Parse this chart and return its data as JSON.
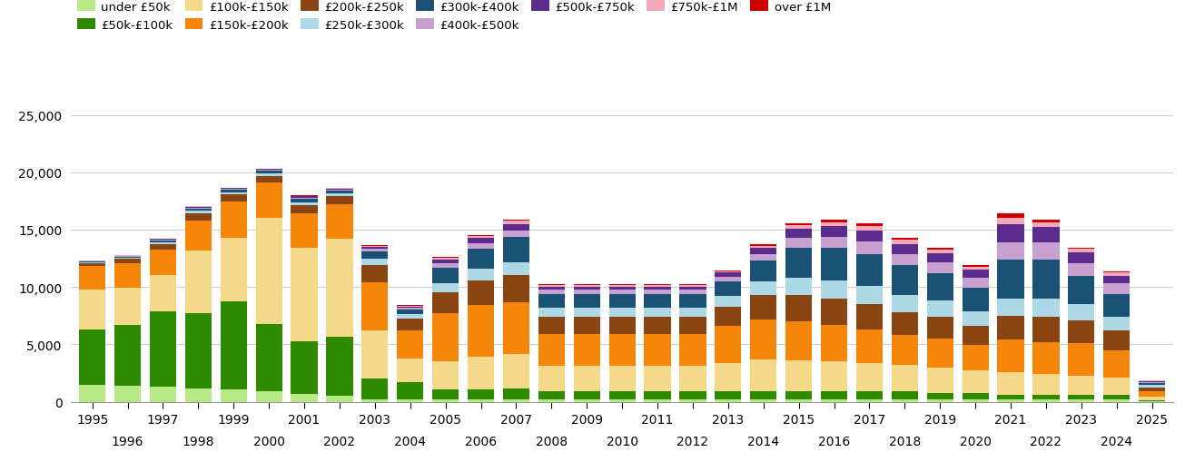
{
  "years": [
    1995,
    1996,
    1997,
    1998,
    1999,
    2000,
    2001,
    2002,
    2003,
    2004,
    2005,
    2006,
    2007,
    2008,
    2009,
    2010,
    2011,
    2012,
    2013,
    2014,
    2015,
    2016,
    2017,
    2018,
    2019,
    2020,
    2021,
    2022,
    2023,
    2024,
    2025
  ],
  "categories": [
    "under £50k",
    "£50k-£100k",
    "£100k-£150k",
    "£150k-£200k",
    "£200k-£250k",
    "£250k-£300k",
    "£300k-£400k",
    "£400k-£500k",
    "£500k-£750k",
    "£750k-£1M",
    "over £1M"
  ],
  "colors": [
    "#b8e986",
    "#2e8b00",
    "#f5d98a",
    "#f5860a",
    "#8b4513",
    "#add8e6",
    "#1a5276",
    "#c8a0d0",
    "#5b2c8d",
    "#f4a7b9",
    "#cc0000"
  ],
  "data": {
    "under £50k": [
      1500,
      1400,
      1350,
      1200,
      1050,
      900,
      650,
      500,
      200,
      250,
      250,
      250,
      250,
      200,
      200,
      200,
      200,
      200,
      200,
      200,
      200,
      200,
      200,
      200,
      200,
      200,
      200,
      200,
      200,
      200,
      50
    ],
    "£50k-£100k": [
      4800,
      5300,
      6500,
      6500,
      7700,
      5900,
      4600,
      5200,
      1800,
      1500,
      800,
      850,
      900,
      700,
      700,
      700,
      700,
      700,
      700,
      700,
      700,
      700,
      700,
      700,
      600,
      550,
      400,
      400,
      400,
      400,
      100
    ],
    "£100k-£150k": [
      3500,
      3200,
      3200,
      5500,
      5500,
      9200,
      8200,
      8500,
      4200,
      2000,
      2500,
      2800,
      3000,
      2200,
      2200,
      2200,
      2200,
      2200,
      2500,
      2800,
      2700,
      2600,
      2500,
      2300,
      2200,
      2000,
      2000,
      1800,
      1700,
      1500,
      300
    ],
    "£150k-£200k": [
      2000,
      2200,
      2200,
      2600,
      3200,
      3100,
      3000,
      3000,
      4200,
      2500,
      4200,
      4500,
      4500,
      2800,
      2800,
      2800,
      2800,
      2800,
      3200,
      3500,
      3400,
      3200,
      2900,
      2600,
      2500,
      2200,
      2800,
      2800,
      2800,
      2400,
      500
    ],
    "£200k-£250k": [
      300,
      350,
      500,
      650,
      600,
      600,
      700,
      700,
      1500,
      1000,
      1800,
      2200,
      2400,
      1500,
      1500,
      1500,
      1500,
      1500,
      1700,
      2100,
      2300,
      2300,
      2200,
      2000,
      1900,
      1700,
      2100,
      2200,
      2000,
      1700,
      300
    ],
    "£250k-£300k": [
      80,
      100,
      150,
      200,
      200,
      200,
      250,
      250,
      600,
      400,
      800,
      1000,
      1100,
      800,
      800,
      800,
      800,
      800,
      900,
      1200,
      1500,
      1600,
      1600,
      1500,
      1400,
      1200,
      1500,
      1600,
      1400,
      1200,
      200
    ],
    "£300k-£400k": [
      80,
      100,
      150,
      200,
      200,
      200,
      300,
      250,
      600,
      400,
      1300,
      1700,
      2200,
      1200,
      1200,
      1200,
      1200,
      1200,
      1300,
      1800,
      2600,
      2800,
      2800,
      2600,
      2400,
      2100,
      3400,
      3400,
      2500,
      2000,
      200
    ],
    "£400k-£500k": [
      30,
      40,
      60,
      80,
      80,
      80,
      100,
      80,
      200,
      130,
      400,
      500,
      600,
      350,
      350,
      350,
      350,
      350,
      400,
      600,
      900,
      1000,
      1100,
      1000,
      950,
      850,
      1500,
      1500,
      1100,
      900,
      100
    ],
    "£500k-£750k": [
      30,
      40,
      60,
      80,
      80,
      80,
      100,
      80,
      200,
      130,
      350,
      450,
      550,
      300,
      300,
      300,
      300,
      300,
      350,
      500,
      800,
      900,
      950,
      850,
      800,
      700,
      1600,
      1300,
      900,
      700,
      80
    ],
    "£750k-£1M": [
      15,
      20,
      30,
      40,
      40,
      40,
      50,
      40,
      100,
      65,
      150,
      200,
      250,
      120,
      120,
      120,
      120,
      120,
      140,
      200,
      320,
      360,
      380,
      340,
      320,
      280,
      550,
      450,
      300,
      250,
      30
    ],
    "over £1M": [
      8,
      10,
      15,
      20,
      20,
      20,
      25,
      20,
      50,
      30,
      75,
      100,
      130,
      60,
      60,
      60,
      60,
      60,
      70,
      100,
      160,
      180,
      190,
      170,
      160,
      140,
      350,
      250,
      150,
      120,
      15
    ]
  },
  "ylim": [
    0,
    25000
  ],
  "yticks": [
    0,
    5000,
    10000,
    15000,
    20000,
    25000
  ],
  "ytick_labels": [
    "0",
    "5,000",
    "10,000",
    "15,000",
    "20,000",
    "25,000"
  ],
  "background_color": "#ffffff",
  "grid_color": "#d0d0d0",
  "bar_width": 0.75
}
